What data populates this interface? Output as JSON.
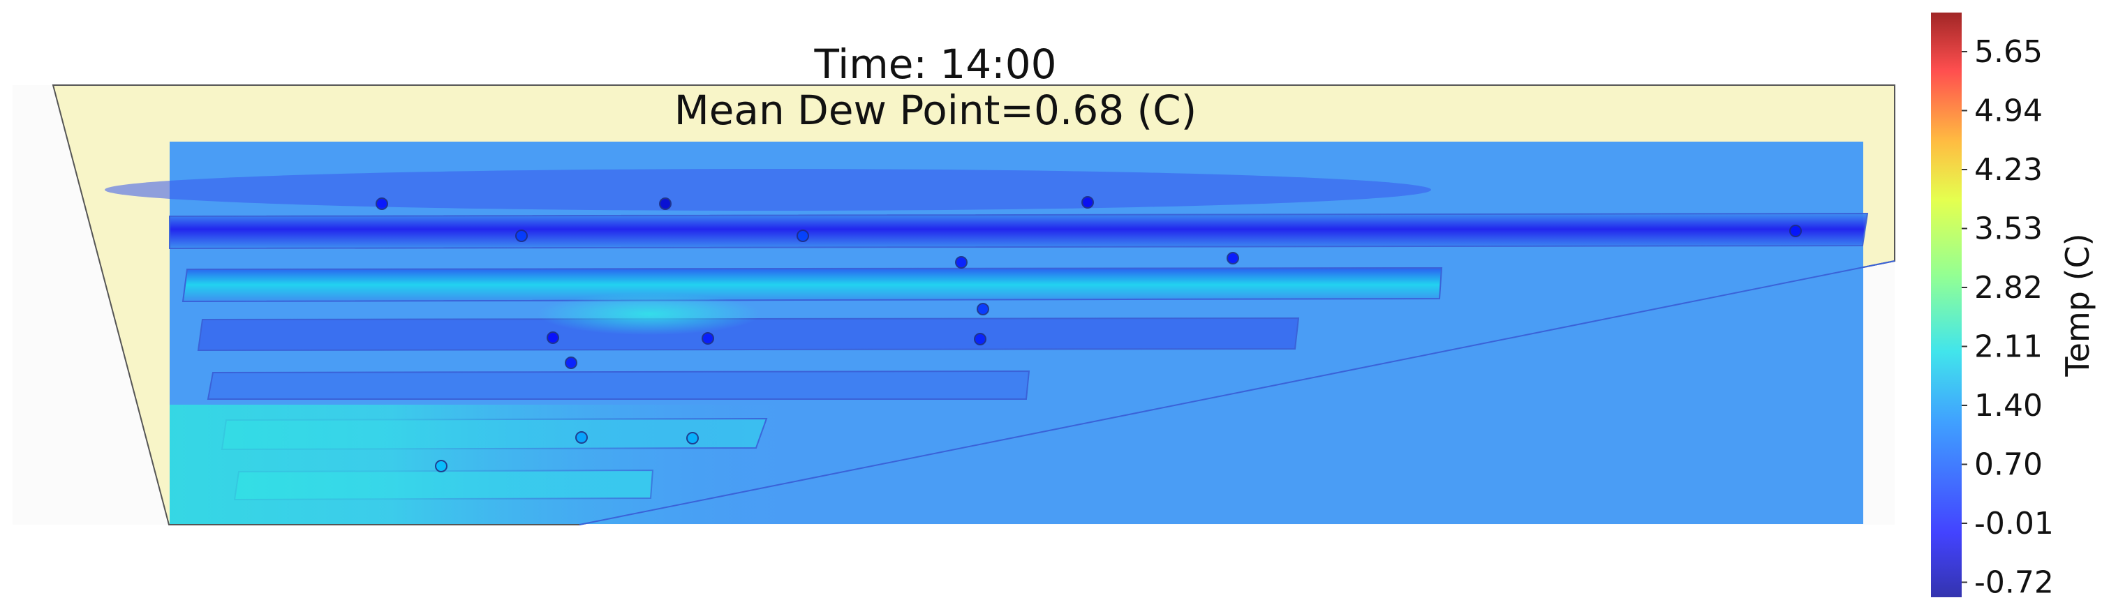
{
  "header": {
    "time_line": "Time: 14:00",
    "mean_line": "Mean Dew Point=0.68 (C)"
  },
  "colorbar": {
    "label": "Temp (C)",
    "ticks": [
      "5.65",
      "4.94",
      "4.23",
      "3.53",
      "2.82",
      "2.11",
      "1.40",
      "0.70",
      "-0.01",
      "-0.72"
    ]
  },
  "chart_data": {
    "type": "heatmap",
    "title": "Time: 14:00",
    "subtitle": "Mean Dew Point=0.68 (C)",
    "colorbar_label": "Temp (C)",
    "colorbar_ticks": [
      5.65,
      4.94,
      4.23,
      3.53,
      2.82,
      2.11,
      1.4,
      0.7,
      -0.01,
      -0.72
    ],
    "colorbar_range": [
      -1.1,
      6.0
    ],
    "colormap": "jet",
    "mean_dew_point": 0.68,
    "background_value": 0.7,
    "sensors": [
      {
        "row": 1,
        "value": -0.15
      },
      {
        "row": 1,
        "value": -0.55
      },
      {
        "row": 1,
        "value": -0.3
      },
      {
        "row": 1,
        "value": -0.1
      },
      {
        "row": 2,
        "value": 0.2
      },
      {
        "row": 2,
        "value": 0.25
      },
      {
        "row": 2,
        "value": -0.1
      },
      {
        "row": 2,
        "value": -0.15
      },
      {
        "row": 3,
        "value": 0.1
      },
      {
        "row": 4,
        "value": -0.2
      },
      {
        "row": 4,
        "value": -0.1
      },
      {
        "row": 4,
        "value": -0.05
      },
      {
        "row": 4,
        "value": -0.1
      },
      {
        "row": 5,
        "value": 0.9
      },
      {
        "row": 5,
        "value": 1.0
      },
      {
        "row": 6,
        "value": 1.1
      }
    ]
  }
}
